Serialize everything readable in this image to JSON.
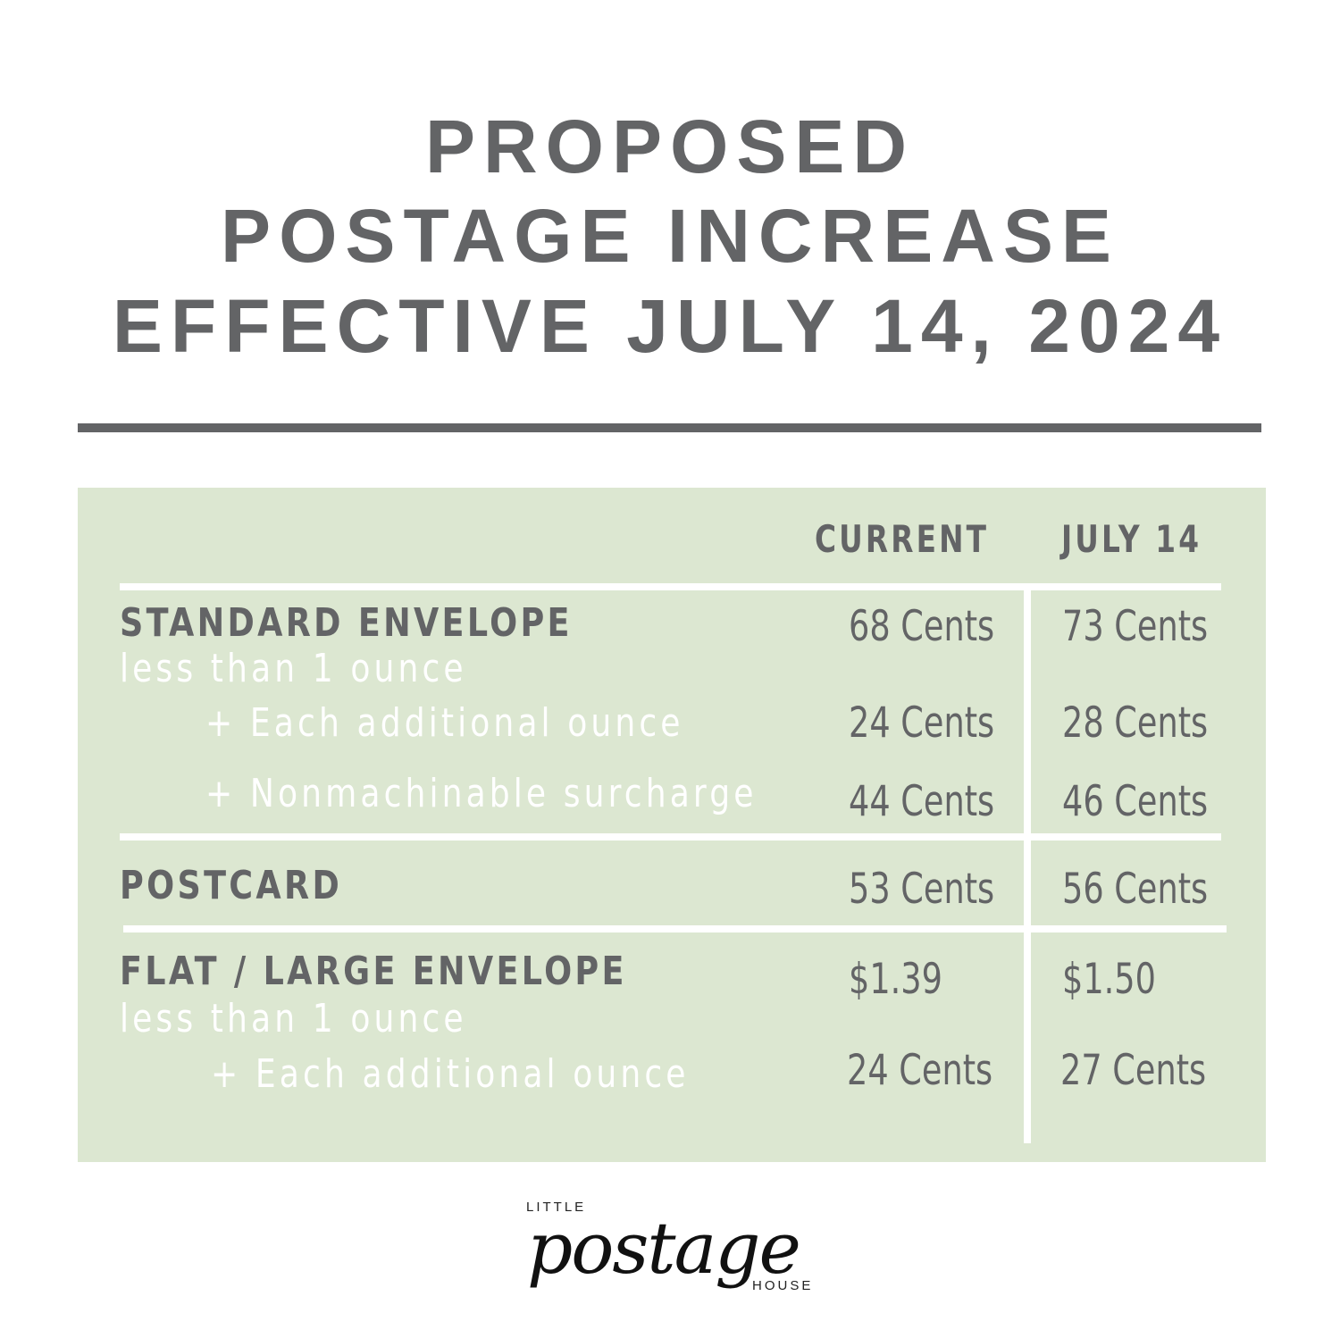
{
  "header": {
    "line1": "PROPOSED",
    "line2": "POSTAGE INCREASE",
    "line3": "EFFECTIVE JULY 14, 2024"
  },
  "table": {
    "columns": [
      "CURRENT",
      "JULY 14"
    ],
    "rows": [
      {
        "label": "STANDARD ENVELOPE",
        "current": "68 Cents",
        "july": "73 Cents"
      },
      {
        "label": "less than 1 ounce"
      },
      {
        "label": "+ Each additional ounce",
        "current": "24 Cents",
        "july": "28 Cents"
      },
      {
        "label": "+ Nonmachinable surcharge",
        "current": "44 Cents",
        "july": "46 Cents"
      },
      {
        "label": "POSTCARD",
        "current": "53 Cents",
        "july": "56 Cents"
      },
      {
        "label": "FLAT / LARGE ENVELOPE",
        "current": "$1.39",
        "july": "$1.50"
      },
      {
        "label": "less than 1 ounce"
      },
      {
        "label": "+ Each additional ounce",
        "current": "24 Cents",
        "july": "27 Cents"
      }
    ]
  },
  "logo": {
    "top": "LITTLE",
    "script": "postage",
    "bottom": "HOUSE"
  },
  "colors": {
    "heading": "#636466",
    "panel": "#dce7d1",
    "divider": "#ffffff"
  }
}
